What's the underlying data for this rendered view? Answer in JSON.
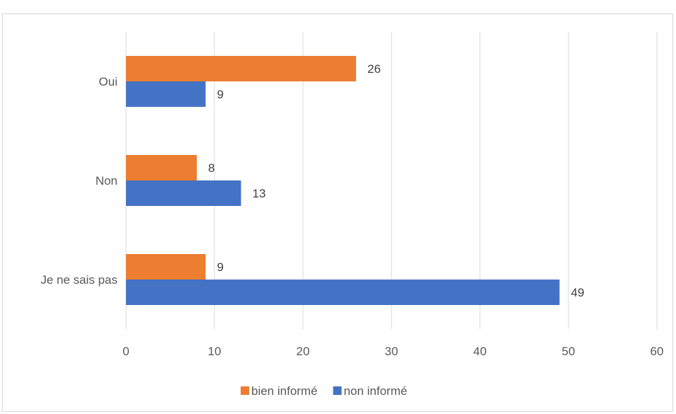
{
  "chart_data": {
    "type": "bar",
    "orientation": "horizontal",
    "categories": [
      "Oui",
      "Non",
      "Je ne sais pas"
    ],
    "series": [
      {
        "name": "bien informé",
        "color": "#ED7D31",
        "values": [
          26,
          8,
          9
        ]
      },
      {
        "name": "non informé",
        "color": "#4472C4",
        "values": [
          9,
          13,
          49
        ]
      }
    ],
    "xlim": [
      0,
      60
    ],
    "xticks": [
      0,
      10,
      20,
      30,
      40,
      50,
      60
    ],
    "title": "",
    "xlabel": "",
    "ylabel": "",
    "grid": "vertical",
    "legend_position": "bottom",
    "data_labels": true
  }
}
